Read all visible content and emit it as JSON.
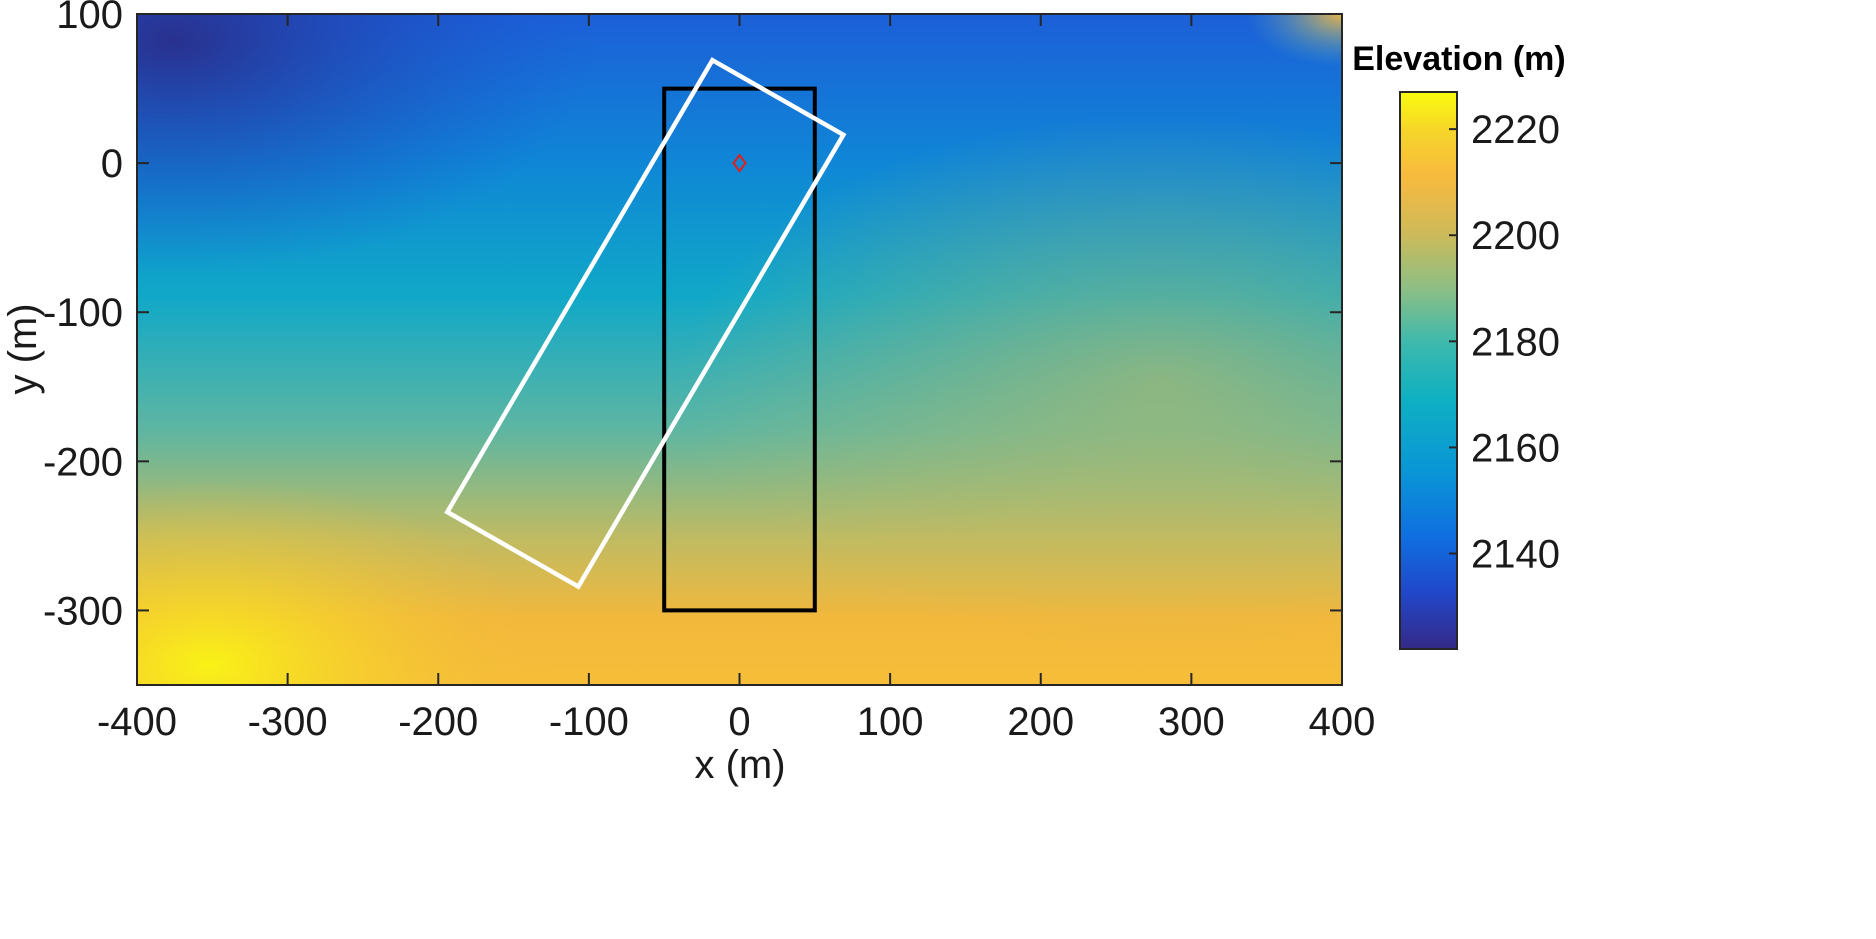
{
  "chart_data": {
    "type": "heatmap",
    "title": "",
    "xlabel": "x (m)",
    "ylabel": "y (m)",
    "xlim": [
      -400,
      400
    ],
    "ylim": [
      -350,
      100
    ],
    "x_ticks": [
      -400,
      -300,
      -200,
      -100,
      0,
      100,
      200,
      300,
      400
    ],
    "y_ticks": [
      100,
      0,
      -100,
      -200,
      -300
    ],
    "x_tick_labels": [
      "-400",
      "-300",
      "-200",
      "-100",
      "0",
      "100",
      "200",
      "300",
      "400"
    ],
    "y_tick_labels": [
      "100",
      "0",
      "-100",
      "-200",
      "-300"
    ],
    "colorbar": {
      "title": "Elevation (m)",
      "range": [
        2122,
        2227
      ],
      "ticks": [
        2140,
        2160,
        2180,
        2200,
        2220
      ],
      "tick_labels": [
        "2140",
        "2160",
        "2180",
        "2200",
        "2220"
      ],
      "colormap": "parula"
    },
    "overlays": [
      {
        "name": "black-rectangle",
        "color": "#000000",
        "vertices": [
          [
            -50,
            50
          ],
          [
            50,
            50
          ],
          [
            50,
            -300
          ],
          [
            -50,
            -300
          ]
        ]
      },
      {
        "name": "white-rotated-rectangle",
        "color": "#ffffff",
        "vertices": [
          [
            -18,
            69
          ],
          [
            69,
            19
          ],
          [
            -107,
            -284
          ],
          [
            -194,
            -234
          ]
        ]
      },
      {
        "name": "origin-marker",
        "color": "#e0201b",
        "marker": "diamond",
        "point": [
          0,
          0
        ]
      }
    ],
    "grid": false
  }
}
